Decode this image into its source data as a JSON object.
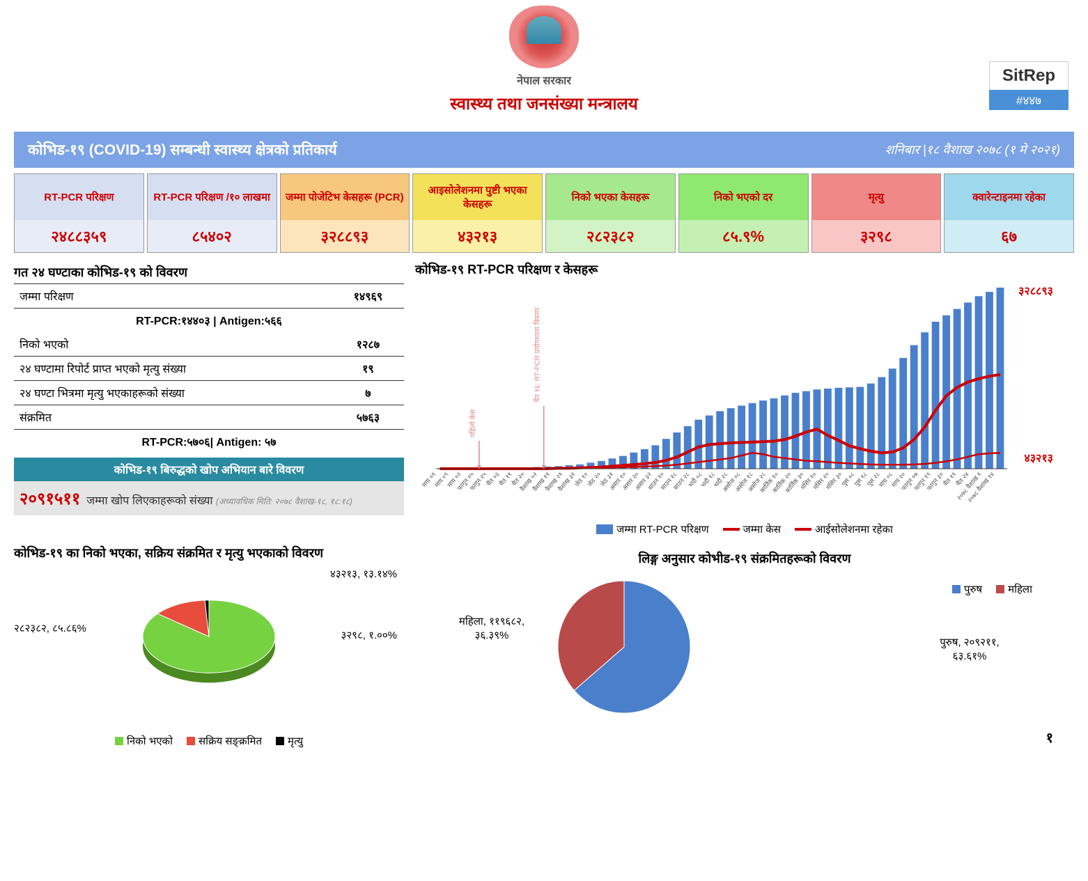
{
  "header": {
    "gov": "नेपाल सरकार",
    "ministry": "स्वास्थ्य तथा जनसंख्या मन्त्रालय",
    "sitrep": "SitRep",
    "sitrep_num": "#४४७"
  },
  "title_bar": {
    "left": "कोभिड-१९ (COVID-19) सम्बन्धी स्वास्थ्य क्षेत्रको प्रतिकार्य",
    "right": "शनिबार |१८ वैशाख २०७८ (१ मे २०२१)"
  },
  "stats": [
    {
      "label": "RT-PCR परिक्षण",
      "value": "२४८८३५९",
      "bg_label": "#d6def2",
      "bg_value": "#e8ecf7",
      "label_color": "#c00",
      "value_color": "#c00"
    },
    {
      "label": "RT-PCR परिक्षण /१० लाखमा",
      "value": "८५४०२",
      "bg_label": "#d6def2",
      "bg_value": "#e8ecf7",
      "label_color": "#c00",
      "value_color": "#c00"
    },
    {
      "label": "जम्मा पोजेटिभ केसहरू (PCR)",
      "value": "३२८८९३",
      "bg_label": "#f7c77e",
      "bg_value": "#fce4bd",
      "label_color": "#c00",
      "value_color": "#c00"
    },
    {
      "label": "आइसोलेशनमा पुष्टी भएका केसहरू",
      "value": "४३२१३",
      "bg_label": "#f4e15a",
      "bg_value": "#faf0a8",
      "label_color": "#c00",
      "value_color": "#c00"
    },
    {
      "label": "निको भएका केसहरू",
      "value": "२८२३८२",
      "bg_label": "#a6e88e",
      "bg_value": "#d2f3c5",
      "label_color": "#c00",
      "value_color": "#c00"
    },
    {
      "label": "निको भएको दर",
      "value": "८५.९%",
      "bg_label": "#8fe870",
      "bg_value": "#c5f0b3",
      "label_color": "#c00",
      "value_color": "#c00"
    },
    {
      "label": "मृत्यु",
      "value": "३२९८",
      "bg_label": "#f08888",
      "bg_value": "#f9c5c5",
      "label_color": "#c00",
      "value_color": "#c00"
    },
    {
      "label": "क्वारेन्टाइनमा रहेका",
      "value": "६७",
      "bg_label": "#9dd8ec",
      "bg_value": "#d0ecf5",
      "label_color": "#c00",
      "value_color": "#c00"
    }
  ],
  "last24": {
    "title": "गत २४ घण्टाका कोभिड-१९ को विवरण",
    "rows": [
      {
        "label": "जम्मा परिक्षण",
        "value": "१४९६९"
      },
      {
        "label": "निको भएको",
        "value": "१२८७"
      },
      {
        "label": "२४ घण्टामा रिपोर्ट प्राप्त भएको मृत्यु संख्या",
        "value": "१९"
      },
      {
        "label": "२४ घण्टा भित्रमा मृत्यु भएकाहरूको संख्या",
        "value": "७"
      },
      {
        "label": "संक्रमित",
        "value": "५७६३"
      }
    ],
    "note1": "RT-PCR:१४४०३ | Antigen:५६६",
    "note2": "RT-PCR:५७०६| Antigen: ५७"
  },
  "vaccine": {
    "title": "कोभिड-१९ बिरुद्धको खोप अभियान बारे विवरण",
    "value": "२०९१५११",
    "label": "जम्मा खोप लिएकाहरूको संख्या",
    "note": "(अध्यावधिक मिति: २०७८ वैशाख-१८, १८:१८)"
  },
  "bar_chart": {
    "title": "कोभिड-१९ RT-PCR परिक्षण र केसहरू",
    "top_label": "३२८८९३",
    "bottom_label": "४३२१३",
    "top_color": "#c00",
    "bottom_color": "#c00",
    "bar_color": "#4a7fcc",
    "line_color": "#c00",
    "ann1": "पहिलो केस",
    "ann2": "चैत १६: RT-PCR प्रयोगशाला बिस्तार",
    "bars": [
      1,
      1,
      1,
      2,
      2,
      2,
      3,
      3,
      3,
      4,
      5,
      6,
      8,
      10,
      14,
      18,
      24,
      30,
      38,
      46,
      55,
      70,
      85,
      100,
      115,
      125,
      135,
      142,
      148,
      154,
      160,
      165,
      172,
      178,
      182,
      186,
      188,
      190,
      191,
      192,
      200,
      215,
      235,
      260,
      290,
      320,
      345,
      360,
      375,
      390,
      405,
      415,
      425
    ],
    "cases": [
      0,
      0,
      0,
      0,
      0,
      0,
      0,
      0,
      0,
      0,
      0,
      1,
      1,
      2,
      3,
      4,
      6,
      8,
      10,
      12,
      15,
      20,
      28,
      40,
      52,
      58,
      60,
      62,
      63,
      64,
      65,
      66,
      70,
      78,
      88,
      95,
      80,
      68,
      55,
      48,
      42,
      38,
      40,
      50,
      70,
      100,
      140,
      175,
      195,
      208,
      216,
      222,
      226
    ],
    "iso": [
      0,
      0,
      0,
      0,
      0,
      0,
      0,
      0,
      0,
      0,
      0,
      1,
      1,
      2,
      3,
      4,
      5,
      6,
      7,
      8,
      10,
      12,
      15,
      20,
      25,
      30,
      35,
      40,
      50,
      60,
      55,
      45,
      40,
      35,
      30,
      28,
      25,
      22,
      20,
      18,
      16,
      15,
      15,
      15,
      16,
      18,
      22,
      28,
      35,
      45,
      55,
      58,
      60
    ],
    "xlabels": [
      "माघ ०१",
      "माघ ०९",
      "माघ ०२",
      "फागुन ०५",
      "फागुन २५",
      "चैत ०३",
      "चैत ११",
      "चैत २०",
      "वैशाख ०२",
      "वैशाख ११",
      "वैशाख २१",
      "वैशाख ३१",
      "जेठ १०",
      "जेठ २०",
      "जेठ ३१",
      "असार १०",
      "असार २०",
      "असार ३२",
      "साउन १०",
      "साउन १८",
      "साउन २८",
      "भदौ ०८",
      "भदौ १८",
      "भदौ २८",
      "असोज ०८",
      "असोज १८",
      "असोज २८",
      "कार्तिक १०",
      "कार्तिक २०",
      "कार्तिक ३०",
      "मंसिर १०",
      "मंसिर २०",
      "मंसिर ३०",
      "पुस ०८",
      "पुस १८",
      "पुस २८",
      "माघ ०८",
      "माघ २०",
      "फागुन ०७",
      "फागुन १९",
      "फागुन ३०",
      "चैत ११",
      "चैत २४",
      "२०७८ वैशाख १",
      "२०७८ वैशाख १४"
    ],
    "legend": [
      {
        "text": "जम्मा RT-PCR परिक्षण",
        "color": "#4a7fcc",
        "type": "box"
      },
      {
        "text": "जम्मा केस",
        "color": "#c00",
        "type": "line"
      },
      {
        "text": "आईसोलेशनमा रहेका",
        "color": "#c00",
        "type": "line"
      }
    ]
  },
  "pie1": {
    "title": "कोभिड-१९ का निको भएका, सक्रिय संक्रमित र मृत्यु भएकाको विवरण",
    "slices": [
      {
        "label": "निको भएको",
        "count": "२८२३८२",
        "pct": "८५.८६%",
        "color": "#76d241",
        "angle": 309.1
      },
      {
        "label": "सक्रिय सङ्क्रमित",
        "count": "४३२१३",
        "pct": "१३.१४%",
        "color": "#e74c3c",
        "angle": 47.3
      },
      {
        "label": "मृत्यु",
        "count": "३२९८",
        "pct": "१.००%",
        "color": "#000",
        "angle": 3.6
      }
    ],
    "lbl_active": "४३२१३, १३.१४%",
    "lbl_death": "३२९८, १.००%",
    "lbl_recov": "२८२३८२, ८५.८६%"
  },
  "pie2": {
    "title": "लिङ्ग अनुसार कोभीड-१९ संक्रमितहरूको विवरण",
    "slices": [
      {
        "label": "पुरुष",
        "count": "२०९२११",
        "pct": "६३.६१%",
        "color": "#4a7fcc",
        "angle": 229
      },
      {
        "label": "महिला",
        "count": "११९६८२",
        "pct": "३६.३९%",
        "color": "#b94a4a",
        "angle": 131
      }
    ],
    "lbl_m": "पुरुष, २०९२११, ६३.६१%",
    "lbl_f": "महिला, ११९६८२, ३६.३९%"
  },
  "page_num": "१"
}
